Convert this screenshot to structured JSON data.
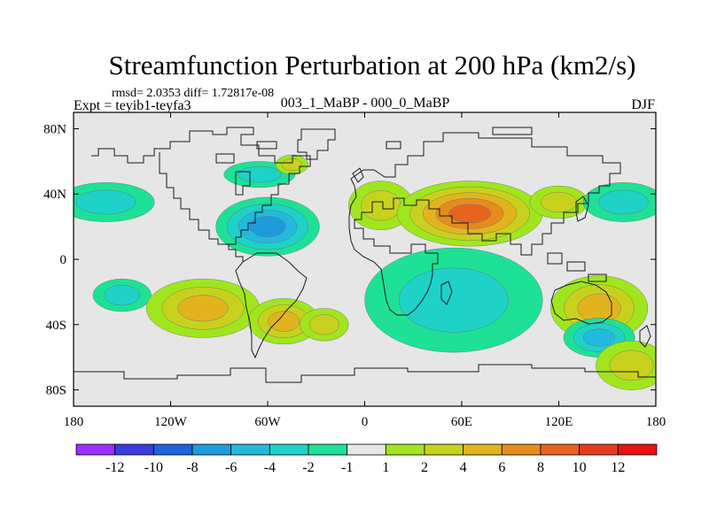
{
  "chart_data": {
    "type": "heatmap",
    "title": "Streamfunction Perturbation at 200 hPa (km2/s)",
    "stats": "rmsd= 2.0353 diff= 1.72817e-08",
    "left_label": "Expt = teyib1-teyfa3",
    "center_label": "003_1_MaBP - 000_0_MaBP",
    "right_label": "DJF",
    "xlim": [
      -180,
      180
    ],
    "ylim": [
      -90,
      90
    ],
    "x_ticks": [
      {
        "value": -180,
        "label": "180"
      },
      {
        "value": -120,
        "label": "120W"
      },
      {
        "value": -60,
        "label": "60W"
      },
      {
        "value": 0,
        "label": "0"
      },
      {
        "value": 60,
        "label": "60E"
      },
      {
        "value": 120,
        "label": "120E"
      },
      {
        "value": 180,
        "label": "180"
      }
    ],
    "y_ticks": [
      {
        "value": 80,
        "label": "80N"
      },
      {
        "value": 40,
        "label": "40N"
      },
      {
        "value": 0,
        "label": "0"
      },
      {
        "value": -40,
        "label": "40S"
      },
      {
        "value": -80,
        "label": "80S"
      }
    ],
    "colorbar": {
      "levels": [
        "-12",
        "-10",
        "-8",
        "-6",
        "-4",
        "-2",
        "-1",
        "1",
        "2",
        "4",
        "6",
        "8",
        "10",
        "12"
      ],
      "colors": [
        "#9b30ff",
        "#3c3cdc",
        "#1e64dc",
        "#1e9bdc",
        "#23b9dc",
        "#1ed2c8",
        "#1ee196",
        "#e6e6e6",
        "#a0e61e",
        "#c8d21e",
        "#e1b41e",
        "#e68c1e",
        "#e6641e",
        "#e63c1e",
        "#e61414"
      ]
    },
    "anomalies": [
      {
        "lon": -160,
        "lat": 35,
        "rx": 30,
        "ry": 12,
        "level": -3
      },
      {
        "lon": -150,
        "lat": -22,
        "rx": 18,
        "ry": 10,
        "level": -3
      },
      {
        "lon": -60,
        "lat": 20,
        "rx": 32,
        "ry": 18,
        "level": -6
      },
      {
        "lon": -65,
        "lat": 52,
        "rx": 22,
        "ry": 8,
        "level": -2
      },
      {
        "lon": -45,
        "lat": 58,
        "rx": 10,
        "ry": 6,
        "level": 2
      },
      {
        "lon": -100,
        "lat": -30,
        "rx": 35,
        "ry": 18,
        "level": 5
      },
      {
        "lon": -50,
        "lat": -38,
        "rx": 22,
        "ry": 14,
        "level": 4
      },
      {
        "lon": -25,
        "lat": -40,
        "rx": 15,
        "ry": 10,
        "level": 2
      },
      {
        "lon": 10,
        "lat": 33,
        "rx": 20,
        "ry": 15,
        "level": 3
      },
      {
        "lon": 65,
        "lat": 28,
        "rx": 45,
        "ry": 20,
        "level": 9
      },
      {
        "lon": 55,
        "lat": -25,
        "rx": 55,
        "ry": 32,
        "level": -3
      },
      {
        "lon": 120,
        "lat": 35,
        "rx": 18,
        "ry": 10,
        "level": 2
      },
      {
        "lon": 145,
        "lat": -30,
        "rx": 30,
        "ry": 20,
        "level": 4
      },
      {
        "lon": 145,
        "lat": -48,
        "rx": 22,
        "ry": 12,
        "level": -4
      },
      {
        "lon": 160,
        "lat": 35,
        "rx": 25,
        "ry": 12,
        "level": -3
      },
      {
        "lon": 165,
        "lat": -65,
        "rx": 22,
        "ry": 15,
        "level": 2
      }
    ]
  }
}
